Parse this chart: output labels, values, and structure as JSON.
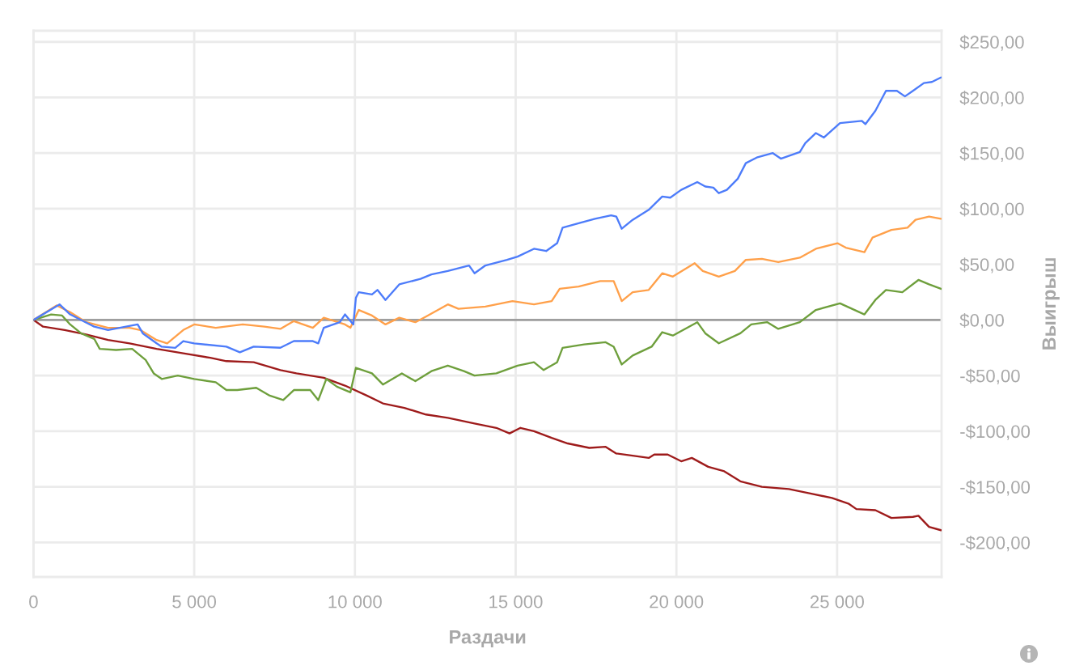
{
  "chart_data": {
    "type": "line",
    "xlabel": "Раздачи",
    "ylabel": "Выигрыш",
    "xlim": [
      0,
      28250
    ],
    "ylim": [
      -231,
      260
    ],
    "xticks": [
      0,
      {
        "value": 5000,
        "label": "5 000"
      },
      {
        "value": 10000,
        "label": "10 000"
      },
      {
        "value": 15000,
        "label": "15 000"
      },
      {
        "value": 20000,
        "label": "20 000"
      },
      {
        "value": 25000,
        "label": "25 000"
      }
    ],
    "yticks": [
      {
        "value": -200,
        "label": "-$200,00"
      },
      {
        "value": -150,
        "label": "-$150,00"
      },
      {
        "value": -100,
        "label": "-$100,00"
      },
      {
        "value": -50,
        "label": "-$50,00"
      },
      {
        "value": 0,
        "label": "$0,00"
      },
      {
        "value": 50,
        "label": "$50,00"
      },
      {
        "value": 100,
        "label": "$100,00"
      },
      {
        "value": 150,
        "label": "$150,00"
      },
      {
        "value": 200,
        "label": "$200,00"
      },
      {
        "value": 250,
        "label": "$250,00"
      }
    ],
    "grid": true,
    "ref_lines": [
      {
        "axis": "y",
        "value": 0,
        "color": "#9e9e9e"
      }
    ],
    "series": [
      {
        "color": "#9e1b1b",
        "x": [
          0,
          300,
          970,
          1640,
          2320,
          2990,
          3830,
          4660,
          5500,
          6000,
          6850,
          7680,
          8180,
          9030,
          9690,
          10370,
          10870,
          11540,
          12210,
          12890,
          13720,
          14400,
          14810,
          15150,
          15570,
          16120,
          16620,
          17290,
          17800,
          18130,
          18640,
          19140,
          19310,
          19730,
          20150,
          20480,
          20990,
          21490,
          21990,
          22660,
          23500,
          24170,
          24840,
          25350,
          25600,
          26190,
          26690,
          27360,
          27530,
          27860,
          28230
        ],
        "values": [
          0,
          -6,
          -9,
          -13,
          -18,
          -21,
          -26,
          -30,
          -34,
          -37,
          -38,
          -45,
          -48,
          -52,
          -59,
          -68,
          -75,
          -79,
          -85,
          -88,
          -93,
          -97,
          -102,
          -97,
          -100,
          -106,
          -111,
          -115,
          -114,
          -120,
          -122,
          -124,
          -121,
          -121,
          -127,
          -124,
          -132,
          -136,
          -145,
          -150,
          -152,
          -156,
          -160,
          -165,
          -170,
          -171,
          -178,
          -177,
          -176,
          -186,
          -189
        ]
      },
      {
        "color": "#6e9f3c",
        "x": [
          0,
          550,
          890,
          1140,
          1480,
          1890,
          2060,
          2570,
          3070,
          3490,
          3740,
          3990,
          4490,
          5000,
          5670,
          6000,
          6340,
          6930,
          7350,
          7770,
          8100,
          8610,
          8860,
          9110,
          9440,
          9860,
          10030,
          10530,
          10870,
          11460,
          11880,
          12380,
          12890,
          13390,
          13720,
          14400,
          15060,
          15570,
          15870,
          16290,
          16460,
          17130,
          17800,
          18050,
          18300,
          18640,
          19230,
          19560,
          19890,
          20650,
          20900,
          21320,
          21990,
          22330,
          22830,
          23170,
          23840,
          24340,
          25090,
          25850,
          26190,
          26520,
          27030,
          27530,
          27860,
          28230
        ],
        "values": [
          0,
          5,
          4,
          -4,
          -12,
          -17,
          -26,
          -27,
          -26,
          -36,
          -48,
          -53,
          -50,
          -53,
          -56,
          -63,
          -63,
          -61,
          -68,
          -72,
          -63,
          -63,
          -72,
          -53,
          -60,
          -65,
          -43,
          -48,
          -58,
          -48,
          -55,
          -46,
          -41,
          -46,
          -50,
          -48,
          -41,
          -38,
          -45,
          -38,
          -25,
          -22,
          -20,
          -24,
          -40,
          -32,
          -24,
          -11,
          -14,
          -2,
          -12,
          -21,
          -12,
          -4,
          -2,
          -8,
          -2,
          9,
          15,
          5,
          18,
          27,
          25,
          36,
          32,
          28
        ]
      },
      {
        "color": "#ffa04a",
        "x": [
          0,
          720,
          1140,
          1640,
          2320,
          2990,
          3320,
          3830,
          4160,
          4660,
          5000,
          5670,
          6510,
          7180,
          7680,
          8100,
          8690,
          9030,
          9690,
          9860,
          10120,
          10530,
          10950,
          11380,
          11880,
          12210,
          12890,
          13220,
          14060,
          14900,
          15570,
          16120,
          16370,
          16960,
          17630,
          18050,
          18300,
          18640,
          19140,
          19560,
          19890,
          20570,
          20820,
          21320,
          21820,
          22160,
          22660,
          23170,
          23840,
          24340,
          25010,
          25270,
          25850,
          26100,
          26690,
          27190,
          27440,
          27860,
          28230
        ],
        "values": [
          0,
          13,
          7,
          -2,
          -7,
          -7,
          -9,
          -18,
          -21,
          -9,
          -4,
          -7,
          -4,
          -6,
          -8,
          -1,
          -7,
          2,
          -4,
          -7,
          9,
          4,
          -4,
          2,
          -2,
          3,
          14,
          10,
          12,
          17,
          14,
          17,
          28,
          30,
          35,
          35,
          17,
          25,
          27,
          42,
          39,
          51,
          44,
          39,
          44,
          54,
          55,
          52,
          56,
          64,
          69,
          65,
          61,
          74,
          81,
          83,
          90,
          93,
          91
        ]
      },
      {
        "color": "#4d7cfa",
        "x": [
          0,
          810,
          1140,
          1890,
          2320,
          3240,
          3400,
          3830,
          3990,
          4410,
          4660,
          5000,
          6000,
          6420,
          6850,
          7680,
          8100,
          8690,
          8860,
          9030,
          9530,
          9690,
          9950,
          10030,
          10120,
          10530,
          10700,
          10950,
          11380,
          12040,
          12380,
          12890,
          13550,
          13720,
          14060,
          14730,
          15060,
          15570,
          15950,
          16290,
          16460,
          16960,
          17470,
          17970,
          18130,
          18300,
          18640,
          19140,
          19560,
          19810,
          20150,
          20650,
          20900,
          21150,
          21320,
          21570,
          21910,
          22160,
          22500,
          23000,
          23250,
          23840,
          24010,
          24340,
          24590,
          25090,
          25770,
          25880,
          26190,
          26520,
          26860,
          27110,
          27360,
          27700,
          27950,
          28230
        ],
        "values": [
          0,
          14,
          5,
          -6,
          -9,
          -4,
          -12,
          -21,
          -24,
          -25,
          -19,
          -21,
          -24,
          -29,
          -24,
          -25,
          -19,
          -19,
          -21,
          -7,
          -2,
          5,
          -4,
          20,
          25,
          23,
          27,
          18,
          32,
          37,
          41,
          44,
          49,
          42,
          49,
          54,
          57,
          64,
          62,
          69,
          83,
          87,
          91,
          94,
          93,
          82,
          90,
          99,
          111,
          110,
          117,
          124,
          120,
          119,
          114,
          117,
          127,
          141,
          146,
          150,
          145,
          151,
          159,
          168,
          164,
          177,
          179,
          176,
          188,
          206,
          206,
          201,
          206,
          213,
          214,
          218
        ]
      }
    ]
  }
}
